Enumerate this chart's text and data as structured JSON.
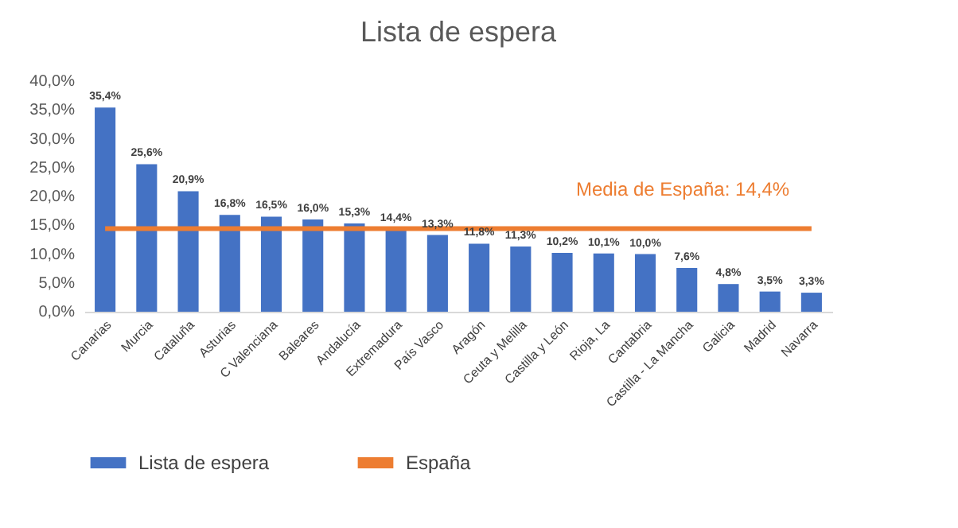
{
  "chart_data": {
    "type": "bar",
    "title": "Lista de espera",
    "categories": [
      "Canarias",
      "Murcia",
      "Cataluña",
      "Asturias",
      "C Valenciana",
      "Baleares",
      "Andalucía",
      "Extremadura",
      "País Vasco",
      "Aragón",
      "Ceuta y Melilla",
      "Castilla y León",
      "Rioja, La",
      "Cantabria",
      "Castilla - La Mancha",
      "Galicia",
      "Madrid",
      "Navarra"
    ],
    "series": [
      {
        "name": "Lista de espera",
        "color": "#4472c4",
        "values": [
          35.4,
          25.6,
          20.9,
          16.8,
          16.5,
          16.0,
          15.3,
          14.4,
          13.3,
          11.8,
          11.3,
          10.2,
          10.1,
          10.0,
          7.6,
          4.8,
          3.5,
          3.3
        ],
        "value_labels": [
          "35,4%",
          "25,6%",
          "20,9%",
          "16,8%",
          "16,5%",
          "16,0%",
          "15,3%",
          "14,4%",
          "13,3%",
          "11,8%",
          "11,3%",
          "10,2%",
          "10,1%",
          "10,0%",
          "7,6%",
          "4,8%",
          "3,5%",
          "3,3%"
        ]
      },
      {
        "name": "España",
        "type": "line",
        "color": "#ed7d31",
        "values": [
          14.4,
          14.4,
          14.4,
          14.4,
          14.4,
          14.4,
          14.4,
          14.4,
          14.4,
          14.4,
          14.4,
          14.4,
          14.4,
          14.4,
          14.4,
          14.4,
          14.4,
          14.4
        ]
      }
    ],
    "ylim": [
      0,
      40
    ],
    "yticks": [
      {
        "value": 0,
        "label": "0,0%"
      },
      {
        "value": 5,
        "label": "5,0%"
      },
      {
        "value": 10,
        "label": "10,0%"
      },
      {
        "value": 15,
        "label": "15,0%"
      },
      {
        "value": 20,
        "label": "20,0%"
      },
      {
        "value": 25,
        "label": "25,0%"
      },
      {
        "value": 30,
        "label": "30,0%"
      },
      {
        "value": 35,
        "label": "35,0%"
      },
      {
        "value": 40,
        "label": "40,0%"
      }
    ],
    "annotations": [
      "Media de España: 14,4%"
    ],
    "legend": "bottom",
    "grid": false
  }
}
